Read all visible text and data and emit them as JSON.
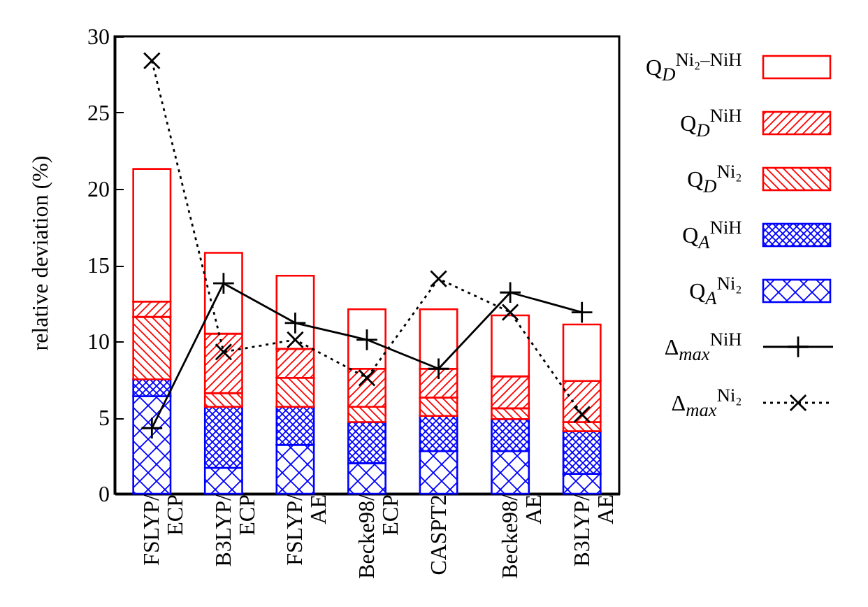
{
  "chart_data": {
    "type": "bar",
    "stacked": true,
    "ylabel": "relative deviation (%)",
    "categories": [
      "FSLYP/\nECP",
      "B3LYP/\nECP",
      "FSLYP/\nAE",
      "Becke98/\nECP",
      "CASPT2",
      "Becke98/\nAE",
      "B3LYP/\nAE"
    ],
    "series": [
      {
        "name": "Q$_{A}$$^{Ni₂}$",
        "color": "#0000ff",
        "values": [
          6.4,
          1.7,
          3.2,
          2.0,
          2.8,
          2.8,
          1.3
        ]
      },
      {
        "name": "Q$_{A}$$^{NiH}$",
        "color": "#0000ff",
        "values": [
          1.1,
          4.0,
          2.5,
          2.7,
          2.3,
          2.1,
          2.8
        ]
      },
      {
        "name": "Q$_{D}$$^{Ni₂}$",
        "color": "#ff0000",
        "values": [
          4.1,
          0.9,
          1.9,
          1.0,
          1.2,
          0.7,
          0.6
        ]
      },
      {
        "name": "Q$_{D}$$^{NiH}$",
        "color": "#ff0000",
        "values": [
          1.0,
          3.9,
          1.9,
          2.5,
          1.9,
          2.1,
          2.7
        ]
      },
      {
        "name": "Q$_{D}$$^{Ni₂–NiH}$",
        "color": "#ff0000",
        "values": [
          8.7,
          5.3,
          4.8,
          3.9,
          3.9,
          4.0,
          3.7
        ]
      },
      {
        "name": "Δ$_{max}$$^{NiH}$",
        "type": "line",
        "color": "#000000",
        "line_style": "solid",
        "marker": "cross",
        "values": [
          4.3,
          13.8,
          11.2,
          10.1,
          8.2,
          13.2,
          11.9
        ]
      },
      {
        "name": "Δ$_{max}$$^{Ni₂}$",
        "type": "line",
        "color": "#000000",
        "line_style": "dotted",
        "marker": "cross",
        "values": [
          28.4,
          9.3,
          10.1,
          7.6,
          14.1,
          11.9,
          5.2
        ]
      }
    ],
    "ylim": [
      0,
      30
    ],
    "yticks": [
      0,
      5,
      10,
      15,
      20,
      25,
      30
    ],
    "legend": "right",
    "grid": false
  }
}
